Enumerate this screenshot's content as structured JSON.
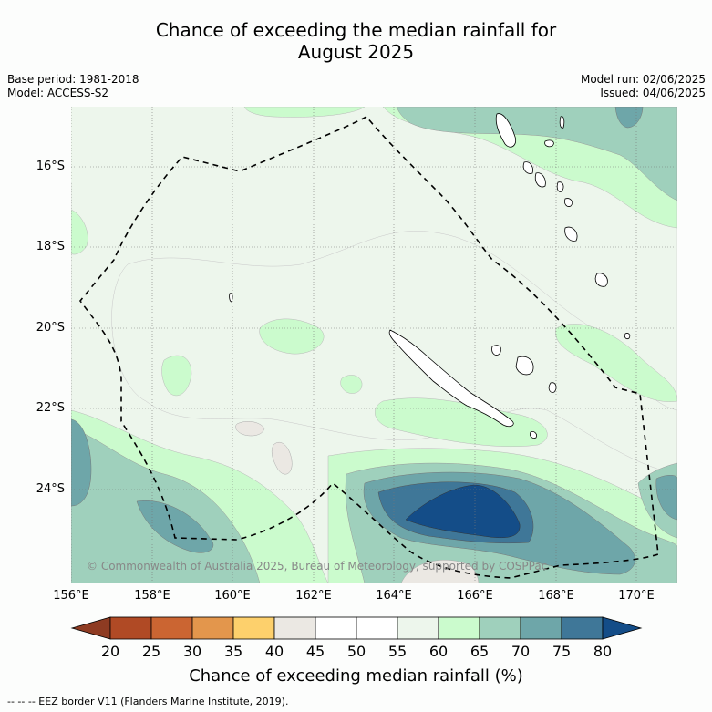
{
  "title": {
    "line1": "Chance of exceeding the median rainfall for",
    "line2": "August 2025"
  },
  "meta_left": {
    "base_period": "Base period: 1981-2018",
    "model": "Model: ACCESS-S2"
  },
  "meta_right": {
    "model_run": "Model run: 02/06/2025",
    "issued": "Issued: 04/06/2025"
  },
  "map": {
    "lat_labels": [
      "16°S",
      "18°S",
      "20°S",
      "22°S",
      "24°S"
    ],
    "lon_labels": [
      "156°E",
      "158°E",
      "160°E",
      "162°E",
      "164°E",
      "166°E",
      "168°E",
      "170°E"
    ],
    "copyright": "© Commonwealth of Australia 2025, Bureau of Meteorology, supported by COSPPac",
    "background_color": "#ffffff",
    "eez_border_style": "dashed-black"
  },
  "colorbar": {
    "ticks": [
      "20",
      "25",
      "30",
      "35",
      "40",
      "45",
      "50",
      "55",
      "60",
      "65",
      "70",
      "75",
      "80"
    ],
    "colors": [
      "#b04a25",
      "#cb6532",
      "#e3964c",
      "#fdd06c",
      "#ebe8e3",
      "#ffffff",
      "#ffffff",
      "#edf6ec",
      "#cbfbcd",
      "#9fd0bc",
      "#6ea6a9",
      "#3f7798"
    ],
    "under_color": "#8e3b22",
    "over_color": "#144d88",
    "label": "Chance of exceeding median rainfall (%)"
  },
  "footnote": "--  --  -- EEZ border V11 (Flanders Marine Institute, 2019)."
}
